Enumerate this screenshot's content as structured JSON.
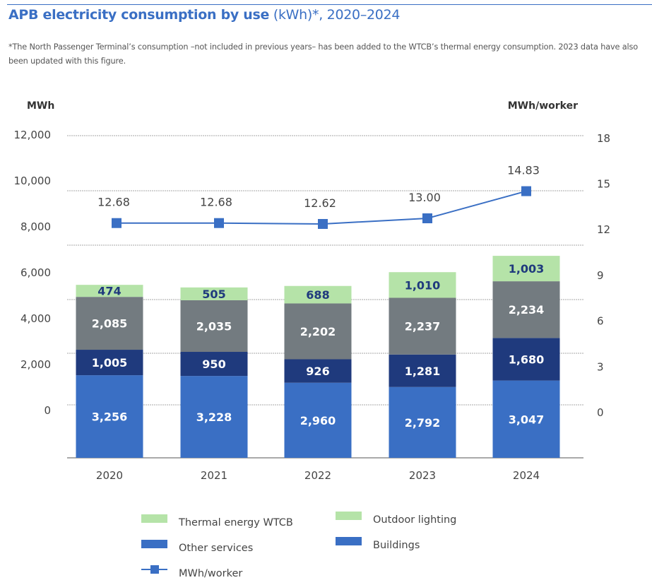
{
  "title": {
    "bold": "APB electricity consumption by use",
    "rest": " (kWh)*, 2020–2024"
  },
  "note": "*The North Passenger Terminal’s consumption –not included in previous years– has been added to the WTCB’s thermal energy consumption. 2023 data have also been updated with this figure.",
  "chart_data": {
    "type": "bar",
    "stacked": true,
    "title": "APB electricity consumption by use (kWh)*, 2020–2024",
    "categories": [
      "2020",
      "2021",
      "2022",
      "2023",
      "2024"
    ],
    "left_axis": {
      "label": "MWh",
      "ticks": [
        "0",
        "2,000",
        "4,000",
        "6,000",
        "8,000",
        "10,000",
        "12,000"
      ]
    },
    "right_axis": {
      "label": "MWh/worker",
      "ticks": [
        "0",
        "3",
        "6",
        "9",
        "12",
        "15",
        "18"
      ]
    },
    "series": [
      {
        "key": "buildings",
        "values": [
          3256,
          3228,
          2960,
          2792,
          3047
        ],
        "labels": [
          "3,256",
          "3,228",
          "2,960",
          "2,792",
          "3,047"
        ],
        "color": "#3a6fc4",
        "label_color": "#ffffff"
      },
      {
        "key": "other",
        "values": [
          1005,
          950,
          926,
          1281,
          1680
        ],
        "labels": [
          "1,005",
          "950",
          "926",
          "1,281",
          "1,680"
        ],
        "color": "#1f3a7d",
        "label_color": "#ffffff"
      },
      {
        "key": "thermal",
        "values": [
          2085,
          2035,
          2202,
          2237,
          2234
        ],
        "labels": [
          "2,085",
          "2,035",
          "2,202",
          "2,237",
          "2,234"
        ],
        "color": "#737b80",
        "label_color": "#ffffff"
      },
      {
        "key": "outdoor",
        "values": [
          474,
          505,
          688,
          1010,
          1003
        ],
        "labels": [
          "474",
          "505",
          "688",
          "1,010",
          "1,003"
        ],
        "color": "#b5e3a8",
        "label_color": "#1f3a7d"
      }
    ],
    "line": {
      "name": "MWh/worker",
      "values": [
        12.68,
        12.68,
        12.62,
        13.0,
        14.83
      ],
      "labels": [
        "12.68",
        "12.68",
        "12.62",
        "13.00",
        "14.83"
      ],
      "color": "#3a6fc4",
      "axis": "right"
    },
    "legend": {
      "placement": "bottom",
      "items": [
        {
          "label": "Thermal energy WTCB",
          "color": "#b5e3a8",
          "kind": "box"
        },
        {
          "label": "Outdoor lighting",
          "color": "#b5e3a8",
          "kind": "box"
        },
        {
          "label": "Other services",
          "color": "#3a6fc4",
          "kind": "box"
        },
        {
          "label": "Buildings",
          "color": "#3a6fc4",
          "kind": "box"
        },
        {
          "label": "MWh/worker",
          "color": "#3a6fc4",
          "kind": "line-marker"
        }
      ]
    },
    "grid": true
  }
}
